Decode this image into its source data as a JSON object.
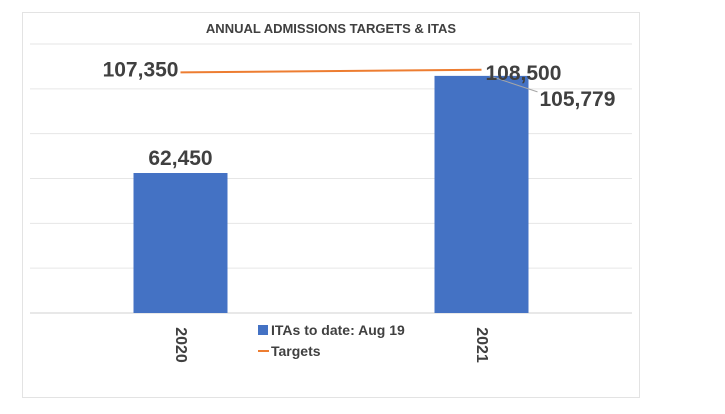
{
  "chart_data": {
    "type": "bar",
    "title": "ANNUAL ADMISSIONS TARGETS & ITAS",
    "categories": [
      "2020",
      "2021"
    ],
    "series": [
      {
        "name": "ITAs to date: Aug 19",
        "kind": "bar",
        "color": "#4472c4",
        "values": [
          62450,
          105779
        ],
        "labels": [
          "62,450",
          "105,779"
        ]
      },
      {
        "name": "Targets",
        "kind": "line",
        "color": "#ed7d31",
        "values": [
          107350,
          108500
        ],
        "labels": [
          "107,350",
          "108,500"
        ]
      }
    ],
    "ylim": [
      0,
      120000
    ],
    "y_gridlines": true,
    "legend_position": "bottom-center",
    "x_tick_rotation": "vertical"
  }
}
